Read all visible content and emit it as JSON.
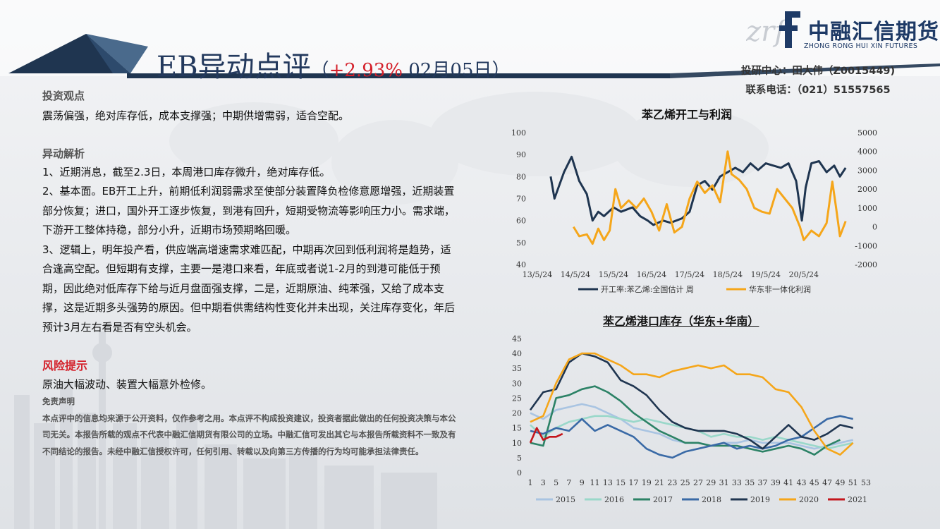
{
  "header": {
    "title_main": "EB异动点评",
    "paren_open": "（",
    "change_pct": "+2.93%",
    "date": "02月05日",
    "paren_close": "）",
    "analyst_line1": "投研中心：田大伟（Z0015449)",
    "analyst_line2": "联系电话：（021）51557565"
  },
  "logo": {
    "cn": "中融汇信期货",
    "en": "ZHONG RONG HUI XIN FUTURES",
    "mark": "zrf"
  },
  "sections": {
    "view_title": "投资观点",
    "view_text": "震荡偏强，绝对库存低，成本支撑强；中期供增需弱，适合空配。",
    "analysis_title": "异动解析",
    "analysis_paras": [
      "1、近期消息，截至2.3日，本周港口库存微升，绝对库存低。",
      "2、基本面。EB开工上升，前期低利润弱需求至使部分装置降负检修意愿增强，近期装置部分恢复；进口，国外开工逐步恢复，到港有回升，短期受物流等影响压力小。需求端，下游开工整体持稳，部分小升，近期市场预期略回暖。",
      "3、逻辑上，明年投产看，供应端高增速需求难匹配，中期再次回到低利润将是趋势，适合逢高空配。但短期有支撑，主要一是港口来看，年底或者说1-2月的到港可能低于预期，因此绝对低库存下给与近月盘面强支撑，二是，近期原油、纯苯强，又给了成本支撑，这是近期多头强势的原因。但中期看供需结构性变化并未出现，关注库存变化，年后预计3月左右看是否有空头机会。"
    ],
    "risk_title": "风险提示",
    "risk_text": "原油大幅波动、装置大幅意外检修。",
    "disclaimer_title": "免责声明",
    "disclaimer_text": "本点评中的信息均来源于公开资料，仅作参考之用。本点评不构成投资建议，投资者据此做出的任何投资决策与本公司无关。本报告所载的观点不代表中融汇信期货有限公司的立场。中融汇信可发出其它与本报告所载资料不一致及有不同结论的报告。未经中融汇信授权许可，任何引用、转载以及向第三方传播的行为均可能承担法律责任。"
  },
  "chart_data": [
    {
      "type": "line",
      "title": "苯乙烯开工与利润",
      "x_tick_labels": [
        "13/5/24",
        "14/5/24",
        "15/5/24",
        "16/5/24",
        "17/5/24",
        "18/5/24",
        "19/5/24",
        "20/5/24"
      ],
      "y_left": {
        "min": 40,
        "max": 100,
        "ticks": [
          40,
          50,
          60,
          70,
          80,
          90,
          100
        ]
      },
      "y_right": {
        "min": -2000,
        "max": 5000,
        "ticks": [
          -2000,
          -1000,
          0,
          1000,
          2000,
          3000,
          4000,
          5000
        ]
      },
      "x_range": [
        0,
        8.3
      ],
      "grid": false,
      "legend_position": "bottom",
      "series": [
        {
          "name": "开工率:苯乙烯:全国估计 周",
          "axis": "left",
          "color": "#1f3550",
          "x": [
            0.35,
            0.45,
            0.7,
            0.9,
            1.1,
            1.3,
            1.45,
            1.6,
            1.75,
            2.0,
            2.2,
            2.5,
            2.7,
            2.9,
            3.05,
            3.3,
            3.5,
            3.8,
            4.0,
            4.2,
            4.4,
            4.6,
            4.8,
            5.0,
            5.2,
            5.4,
            5.6,
            5.8,
            6.0,
            6.2,
            6.4,
            6.6,
            6.8,
            6.95,
            7.05,
            7.2,
            7.4,
            7.6,
            7.8,
            7.95,
            8.1
          ],
          "y": [
            80,
            70,
            82,
            89,
            78,
            72,
            60,
            64,
            62,
            66,
            64,
            66,
            62,
            60,
            58,
            60,
            59,
            61,
            64,
            76,
            78,
            74,
            80,
            82,
            84,
            82,
            86,
            83,
            86,
            85,
            84,
            86,
            78,
            60,
            75,
            86,
            87,
            82,
            85,
            80,
            84
          ]
        },
        {
          "name": "华东非一体化利润",
          "axis": "right",
          "color": "#f5a61a",
          "x": [
            0.95,
            1.1,
            1.3,
            1.45,
            1.6,
            1.75,
            1.9,
            2.05,
            2.2,
            2.4,
            2.6,
            2.8,
            3.0,
            3.2,
            3.4,
            3.6,
            3.8,
            4.0,
            4.2,
            4.4,
            4.6,
            4.8,
            5.0,
            5.1,
            5.3,
            5.5,
            5.7,
            5.9,
            6.1,
            6.3,
            6.5,
            6.7,
            6.9,
            7.0,
            7.2,
            7.4,
            7.6,
            7.75,
            7.85,
            7.95,
            8.1
          ],
          "y": [
            0,
            -500,
            -400,
            -900,
            -100,
            -700,
            -200,
            2000,
            1000,
            1400,
            1000,
            1500,
            800,
            -200,
            1200,
            -300,
            0,
            1500,
            2400,
            1800,
            2200,
            1300,
            4000,
            2800,
            2500,
            2000,
            1000,
            800,
            700,
            2000,
            1500,
            1000,
            0,
            -700,
            -200,
            -500,
            200,
            2400,
            1000,
            -500,
            300
          ]
        }
      ]
    },
    {
      "type": "line",
      "title": "苯乙烯港口库存（华东+华南）",
      "x_tick_labels": [
        "1",
        "3",
        "5",
        "7",
        "9",
        "11",
        "13",
        "15",
        "17",
        "19",
        "21",
        "23",
        "25",
        "27",
        "29",
        "31",
        "33",
        "35",
        "37",
        "39",
        "41",
        "43",
        "45",
        "47",
        "49",
        "51",
        "53"
      ],
      "y": {
        "min": 0,
        "max": 45,
        "ticks": [
          0,
          5,
          10,
          15,
          20,
          25,
          30,
          35,
          40,
          45
        ]
      },
      "x_range": [
        1,
        53
      ],
      "grid": false,
      "legend_position": "bottom",
      "series": [
        {
          "name": "2015",
          "color": "#a9c4e2",
          "x": [
            1,
            3,
            5,
            7,
            9,
            11,
            13,
            15,
            17,
            19,
            21,
            23,
            25,
            27,
            29,
            31,
            33,
            35,
            37,
            39,
            41,
            43,
            45,
            47,
            49,
            51
          ],
          "y": [
            20,
            18,
            21,
            22,
            23,
            22,
            20,
            18,
            15,
            14,
            13,
            11,
            10,
            10,
            9,
            10,
            10,
            11,
            10,
            10,
            10,
            9,
            8,
            9,
            10,
            11
          ]
        },
        {
          "name": "2016",
          "color": "#9ad8ca",
          "x": [
            1,
            3,
            5,
            7,
            9,
            11,
            13,
            15,
            17,
            19,
            21,
            23,
            25,
            27,
            29,
            31,
            33,
            35,
            37,
            39,
            41,
            43,
            45,
            47,
            49,
            51
          ],
          "y": [
            16,
            12,
            15,
            17,
            18,
            19,
            19,
            18,
            17,
            18,
            17,
            16,
            15,
            14,
            12,
            13,
            12,
            12,
            11,
            12,
            11,
            10,
            9,
            8,
            9,
            10
          ]
        },
        {
          "name": "2017",
          "color": "#2c8266",
          "x": [
            1,
            3,
            5,
            7,
            9,
            11,
            13,
            15,
            17,
            19,
            21,
            23,
            25,
            27,
            29,
            31,
            33,
            35,
            37,
            39,
            41,
            43,
            45,
            47,
            49
          ],
          "y": [
            10,
            9,
            25,
            26,
            28,
            29,
            27,
            24,
            20,
            17,
            14,
            12,
            10,
            10,
            9,
            9,
            9,
            8,
            7,
            8,
            9,
            8,
            6,
            9,
            11
          ]
        },
        {
          "name": "2018",
          "color": "#3a6aa6",
          "x": [
            1,
            3,
            5,
            7,
            9,
            11,
            13,
            15,
            17,
            19,
            21,
            23,
            25,
            27,
            29,
            31,
            33,
            35,
            37,
            39,
            41,
            43,
            45,
            47,
            49,
            51
          ],
          "y": [
            14,
            13,
            15,
            14,
            18,
            14,
            16,
            14,
            12,
            8,
            6,
            5,
            7,
            8,
            9,
            10,
            8,
            9,
            8,
            9,
            11,
            12,
            15,
            18,
            19,
            18
          ]
        },
        {
          "name": "2019",
          "color": "#1f3550",
          "x": [
            1,
            3,
            5,
            7,
            9,
            11,
            13,
            15,
            17,
            19,
            21,
            23,
            25,
            27,
            29,
            31,
            33,
            35,
            37,
            39,
            41,
            43,
            45,
            47,
            49,
            51
          ],
          "y": [
            21,
            27,
            28,
            37,
            40,
            39,
            37,
            31,
            29,
            26,
            21,
            17,
            15,
            14,
            14,
            14,
            13,
            11,
            8,
            12,
            16,
            12,
            11,
            13,
            16,
            15
          ]
        },
        {
          "name": "2020",
          "color": "#f5a61a",
          "x": [
            1,
            3,
            5,
            7,
            9,
            11,
            13,
            15,
            17,
            19,
            21,
            23,
            25,
            27,
            29,
            31,
            33,
            35,
            37,
            39,
            41,
            43,
            45,
            47,
            49,
            51
          ],
          "y": [
            17,
            19,
            30,
            38,
            40,
            40,
            38,
            36,
            33,
            33,
            32,
            34,
            35,
            36,
            35,
            36,
            33,
            33,
            32,
            28,
            27,
            22,
            14,
            8,
            6,
            10
          ]
        },
        {
          "name": "2021",
          "color": "#c4161c",
          "x": [
            1,
            2,
            3,
            4,
            5,
            6
          ],
          "y": [
            10,
            15,
            11,
            12,
            12,
            13
          ]
        }
      ]
    }
  ]
}
